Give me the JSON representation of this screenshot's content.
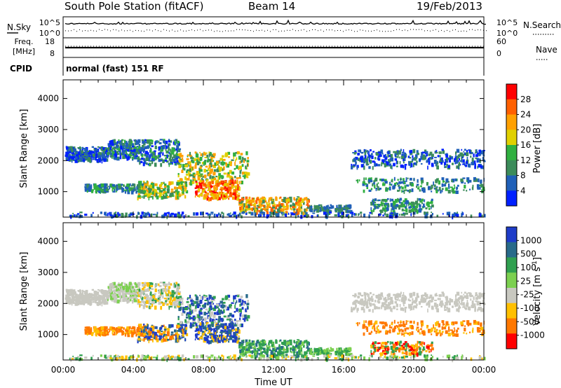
{
  "header": {
    "title": "South Pole Station (fitACF)",
    "beam": "Beam 14",
    "date": "19/Feb/2013"
  },
  "status_panels": {
    "nsky_label": "N.Sky",
    "nsearch_label": "N.Search",
    "noise_ticks": [
      "10^5",
      "10^0"
    ],
    "freq_label_top": "Freq.",
    "freq_label_units": "[MHz]",
    "freq_ticks": [
      "18",
      "8"
    ],
    "nave_label": "Nave",
    "nave_ticks": [
      "60",
      "0"
    ],
    "cpid_label": "CPID",
    "cpid_value": "normal (fast) 151 RF"
  },
  "chart_data": [
    {
      "type": "heatmap",
      "name": "power",
      "ylabel": "Slant Range [km]",
      "xlabel": "",
      "yticks": [
        "4000",
        "3000",
        "2000",
        "1000"
      ],
      "ylim": [
        180,
        4600
      ],
      "xlim_hours": [
        0,
        24
      ],
      "colorbar": {
        "label": "Power [dB]",
        "ticks": [
          "28",
          "24",
          "20",
          "16",
          "12",
          "8",
          "4"
        ],
        "colors": [
          "#ff0000",
          "#ff6000",
          "#ffa000",
          "#e0d000",
          "#30b040",
          "#3c8c5a",
          "#2060b8",
          "#0020ff"
        ]
      }
    },
    {
      "type": "heatmap",
      "name": "velocity",
      "ylabel": "Slant Range [km]",
      "xlabel": "Time UT",
      "yticks": [
        "4000",
        "3000",
        "2000",
        "1000"
      ],
      "xticks": [
        "00:00",
        "04:00",
        "08:00",
        "12:00",
        "16:00",
        "20:00",
        "00:00"
      ],
      "ylim": [
        180,
        4600
      ],
      "xlim_hours": [
        0,
        24
      ],
      "colorbar": {
        "label": "Velocity [m s",
        "label_sup": "-1",
        "label_end": "]",
        "ticks": [
          "1000",
          "500",
          "100",
          "25",
          "-25",
          "-100",
          "-500",
          "-1000"
        ],
        "colors": [
          "#1e3cc8",
          "#286a8a",
          "#30a050",
          "#7cd050",
          "#c8c8c0",
          "#ffc000",
          "#ff7800",
          "#ff0000"
        ]
      }
    }
  ]
}
